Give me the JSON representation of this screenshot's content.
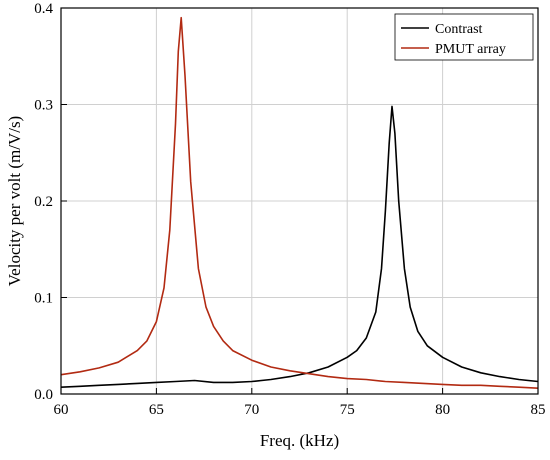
{
  "chart_data": {
    "type": "line",
    "xlabel": "Freq. (kHz)",
    "ylabel": "Velocity per volt (m/V/s)",
    "xlim": [
      60,
      85
    ],
    "ylim": [
      0,
      0.4
    ],
    "xticks": [
      "60",
      "65",
      "70",
      "75",
      "80",
      "85"
    ],
    "yticks": [
      "0.0",
      "0.1",
      "0.2",
      "0.3",
      "0.4"
    ],
    "grid": true,
    "legend": "top-right",
    "series": [
      {
        "name": "Contrast",
        "color": "#000000",
        "x": [
          60,
          61,
          62,
          63,
          64,
          65,
          66,
          67,
          68,
          69,
          70,
          71,
          72,
          73,
          74,
          75,
          75.5,
          76,
          76.5,
          76.8,
          77,
          77.2,
          77.35,
          77.5,
          77.7,
          78,
          78.3,
          78.7,
          79.2,
          80,
          81,
          82,
          83,
          84,
          85
        ],
        "y": [
          0.007,
          0.008,
          0.009,
          0.01,
          0.011,
          0.012,
          0.013,
          0.014,
          0.012,
          0.012,
          0.013,
          0.015,
          0.018,
          0.022,
          0.028,
          0.038,
          0.045,
          0.058,
          0.085,
          0.13,
          0.19,
          0.26,
          0.298,
          0.27,
          0.2,
          0.13,
          0.09,
          0.065,
          0.05,
          0.038,
          0.028,
          0.022,
          0.018,
          0.015,
          0.013
        ]
      },
      {
        "name": "PMUT array",
        "color": "#b22a12",
        "x": [
          60,
          61,
          62,
          63,
          64,
          64.5,
          65,
          65.4,
          65.7,
          66,
          66.15,
          66.3,
          66.5,
          66.8,
          67.2,
          67.6,
          68,
          68.5,
          69,
          70,
          71,
          72,
          73,
          74,
          75,
          76,
          77,
          78,
          79,
          80,
          81,
          82,
          83,
          84,
          85
        ],
        "y": [
          0.02,
          0.023,
          0.027,
          0.033,
          0.045,
          0.055,
          0.075,
          0.11,
          0.17,
          0.28,
          0.355,
          0.39,
          0.33,
          0.22,
          0.13,
          0.09,
          0.07,
          0.055,
          0.045,
          0.035,
          0.028,
          0.024,
          0.021,
          0.018,
          0.016,
          0.015,
          0.013,
          0.012,
          0.011,
          0.01,
          0.009,
          0.009,
          0.008,
          0.007,
          0.006
        ]
      }
    ]
  }
}
